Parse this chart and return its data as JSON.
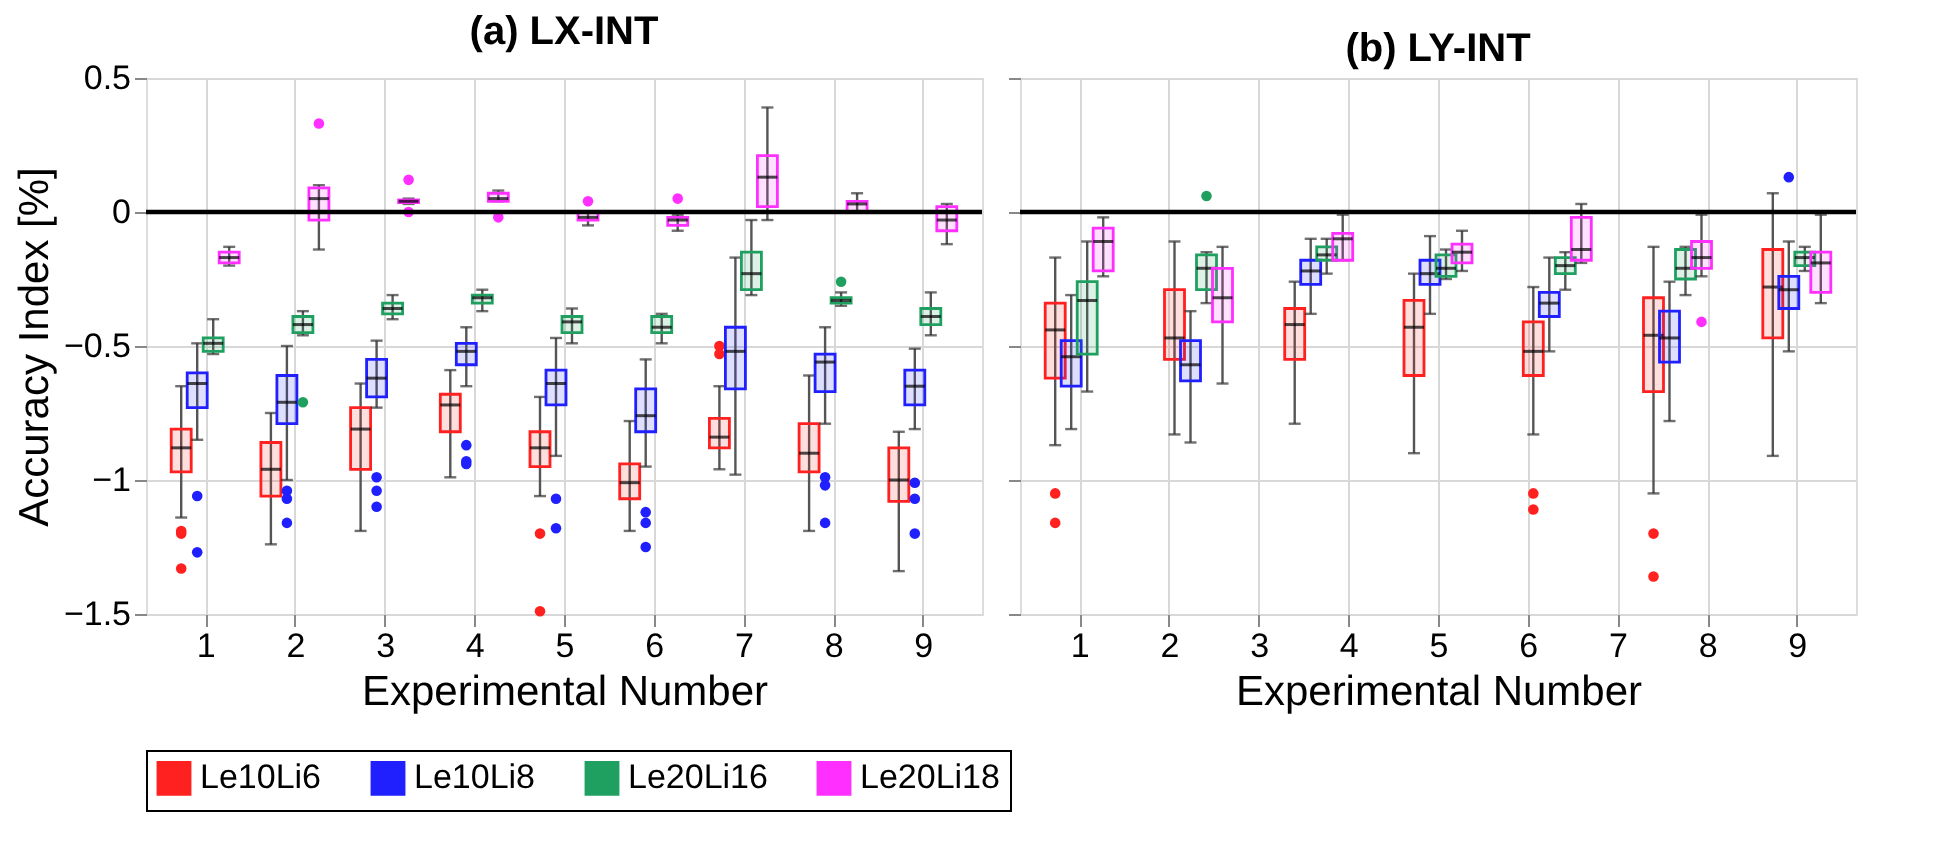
{
  "chart_data": [
    {
      "type": "box",
      "title": "(a) LX-INT",
      "xlabel": "Experimental Number",
      "ylabel": "Accuracy Index [%]",
      "xlim": [
        0.34,
        9.66
      ],
      "xticks": [
        1,
        2,
        3,
        4,
        5,
        6,
        7,
        8,
        9
      ],
      "ylim": [
        -1.5,
        0.5
      ],
      "yticks": [
        -1.5,
        -1,
        -0.5,
        0,
        0.5
      ],
      "grid": true,
      "legend": "bottom",
      "ref_lines": [
        {
          "axis": "y",
          "value": 0,
          "color": "#000000"
        }
      ],
      "series": [
        {
          "name": "Le10Li6",
          "color": "#ff2020",
          "x": [
            1,
            2,
            3,
            4,
            5,
            6,
            7,
            8,
            9
          ],
          "boxes": [
            {
              "low": -1.14,
              "q1": -0.97,
              "median": -0.88,
              "q3": -0.81,
              "high": -0.65,
              "outliers": [
                -1.19,
                -1.2,
                -1.33
              ]
            },
            {
              "low": -1.24,
              "q1": -1.06,
              "median": -0.96,
              "q3": -0.86,
              "high": -0.75
            },
            {
              "low": -1.19,
              "q1": -0.96,
              "median": -0.81,
              "q3": -0.73,
              "high": -0.64
            },
            {
              "low": -0.99,
              "q1": -0.82,
              "median": -0.72,
              "q3": -0.68,
              "high": -0.59
            },
            {
              "low": -1.06,
              "q1": -0.95,
              "median": -0.88,
              "q3": -0.82,
              "high": -0.69,
              "outliers": [
                -1.2,
                -1.49
              ]
            },
            {
              "low": -1.19,
              "q1": -1.07,
              "median": -1.01,
              "q3": -0.94,
              "high": -0.78
            },
            {
              "low": -0.96,
              "q1": -0.88,
              "median": -0.84,
              "q3": -0.77,
              "high": -0.65,
              "outliers": [
                -0.5,
                -0.53
              ]
            },
            {
              "low": -1.19,
              "q1": -0.97,
              "median": -0.9,
              "q3": -0.79,
              "high": -0.61
            },
            {
              "low": -1.34,
              "q1": -1.08,
              "median": -1.0,
              "q3": -0.88,
              "high": -0.82
            }
          ]
        },
        {
          "name": "Le10Li8",
          "color": "#2020ff",
          "x": [
            1,
            2,
            3,
            4,
            5,
            6,
            7,
            8,
            9
          ],
          "boxes": [
            {
              "low": -0.85,
              "q1": -0.73,
              "median": -0.64,
              "q3": -0.6,
              "high": -0.49,
              "outliers": [
                -1.06,
                -1.27
              ]
            },
            {
              "low": -1.0,
              "q1": -0.79,
              "median": -0.71,
              "q3": -0.61,
              "high": -0.5,
              "outliers": [
                -1.04,
                -1.07,
                -1.16
              ]
            },
            {
              "low": -0.73,
              "q1": -0.69,
              "median": -0.62,
              "q3": -0.55,
              "high": -0.48,
              "outliers": [
                -0.99,
                -1.04,
                -1.1
              ]
            },
            {
              "low": -0.65,
              "q1": -0.57,
              "median": -0.52,
              "q3": -0.49,
              "high": -0.43,
              "outliers": [
                -0.87,
                -0.93,
                -0.94
              ]
            },
            {
              "low": -0.91,
              "q1": -0.72,
              "median": -0.64,
              "q3": -0.59,
              "high": -0.47,
              "outliers": [
                -1.07,
                -1.18
              ]
            },
            {
              "low": -0.95,
              "q1": -0.82,
              "median": -0.76,
              "q3": -0.66,
              "high": -0.55,
              "outliers": [
                -1.12,
                -1.16,
                -1.25
              ]
            },
            {
              "low": -0.98,
              "q1": -0.66,
              "median": -0.52,
              "q3": -0.43,
              "high": -0.17
            },
            {
              "low": -0.79,
              "q1": -0.67,
              "median": -0.56,
              "q3": -0.53,
              "high": -0.43,
              "outliers": [
                -0.99,
                -1.02,
                -1.16
              ]
            },
            {
              "low": -0.81,
              "q1": -0.72,
              "median": -0.65,
              "q3": -0.59,
              "high": -0.51,
              "outliers": [
                -1.01,
                -1.07,
                -1.2
              ]
            }
          ]
        },
        {
          "name": "Le20Li16",
          "color": "#20a060",
          "x": [
            1,
            2,
            3,
            4,
            5,
            6,
            7,
            8,
            9
          ],
          "boxes": [
            {
              "low": -0.53,
              "q1": -0.52,
              "median": -0.49,
              "q3": -0.47,
              "high": -0.4
            },
            {
              "low": -0.46,
              "q1": -0.45,
              "median": -0.42,
              "q3": -0.39,
              "high": -0.37,
              "outliers": [
                -0.71
              ]
            },
            {
              "low": -0.4,
              "q1": -0.38,
              "median": -0.36,
              "q3": -0.34,
              "high": -0.31
            },
            {
              "low": -0.37,
              "q1": -0.34,
              "median": -0.32,
              "q3": -0.31,
              "high": -0.29
            },
            {
              "low": -0.49,
              "q1": -0.45,
              "median": -0.41,
              "q3": -0.39,
              "high": -0.36
            },
            {
              "low": -0.49,
              "q1": -0.45,
              "median": -0.43,
              "q3": -0.39,
              "high": -0.38
            },
            {
              "low": -0.31,
              "q1": -0.29,
              "median": -0.23,
              "q3": -0.15,
              "high": -0.03
            },
            {
              "low": -0.35,
              "q1": -0.34,
              "median": -0.33,
              "q3": -0.32,
              "high": -0.3,
              "outliers": [
                -0.26
              ]
            },
            {
              "low": -0.46,
              "q1": -0.42,
              "median": -0.39,
              "q3": -0.36,
              "high": -0.3
            }
          ]
        },
        {
          "name": "Le20Li18",
          "color": "#ff30ff",
          "x": [
            1,
            2,
            3,
            4,
            5,
            6,
            7,
            8,
            9
          ],
          "boxes": [
            {
              "low": -0.2,
              "q1": -0.19,
              "median": -0.17,
              "q3": -0.15,
              "high": -0.13
            },
            {
              "low": -0.14,
              "q1": -0.03,
              "median": 0.05,
              "q3": 0.09,
              "high": 0.1,
              "outliers": [
                0.33
              ]
            },
            {
              "low": 0.03,
              "q1": 0.035,
              "median": 0.04,
              "q3": 0.045,
              "high": 0.05,
              "outliers": [
                0.12,
                0.0
              ]
            },
            {
              "low": 0.04,
              "q1": 0.04,
              "median": 0.05,
              "q3": 0.07,
              "high": 0.08,
              "outliers": [
                -0.02
              ]
            },
            {
              "low": -0.05,
              "q1": -0.03,
              "median": -0.02,
              "q3": 0.0,
              "high": 0.0,
              "outliers": [
                0.04
              ]
            },
            {
              "low": -0.07,
              "q1": -0.05,
              "median": -0.03,
              "q3": -0.02,
              "high": -0.01,
              "outliers": [
                0.05
              ]
            },
            {
              "low": -0.03,
              "q1": 0.02,
              "median": 0.13,
              "q3": 0.21,
              "high": 0.39
            },
            {
              "low": 0.0,
              "q1": 0.0,
              "median": 0.03,
              "q3": 0.04,
              "high": 0.07
            },
            {
              "low": -0.12,
              "q1": -0.07,
              "median": -0.03,
              "q3": 0.02,
              "high": 0.03
            }
          ]
        }
      ]
    },
    {
      "type": "box",
      "title": "(b) LY-INT",
      "xlabel": "Experimental Number",
      "xlim": [
        0.34,
        9.66
      ],
      "xticks": [
        1,
        2,
        3,
        4,
        5,
        6,
        7,
        8,
        9
      ],
      "ylim": [
        -1.5,
        0.5
      ],
      "yticks": [
        -1.5,
        -1,
        -0.5,
        0,
        0.5
      ],
      "tick_labels": "x",
      "grid": true,
      "legend": "bottom",
      "ref_lines": [
        {
          "axis": "y",
          "value": 0,
          "color": "#000000"
        }
      ],
      "series": [
        {
          "name": "Le10Li6",
          "color": "#ff2020",
          "x": [
            1,
            2.33,
            3.67,
            5,
            6.33,
            7.67,
            9
          ],
          "boxes": [
            {
              "low": -0.87,
              "q1": -0.62,
              "median": -0.44,
              "q3": -0.34,
              "high": -0.17,
              "outliers": [
                -1.05,
                -1.16
              ]
            },
            {
              "low": -0.83,
              "q1": -0.55,
              "median": -0.47,
              "q3": -0.29,
              "high": -0.11
            },
            {
              "low": -0.79,
              "q1": -0.55,
              "median": -0.42,
              "q3": -0.36,
              "high": -0.26
            },
            {
              "low": -0.9,
              "q1": -0.61,
              "median": -0.43,
              "q3": -0.33,
              "high": -0.23
            },
            {
              "low": -0.83,
              "q1": -0.61,
              "median": -0.52,
              "q3": -0.41,
              "high": -0.28,
              "outliers": [
                -1.05,
                -1.11
              ]
            },
            {
              "low": -1.05,
              "q1": -0.67,
              "median": -0.46,
              "q3": -0.32,
              "high": -0.13,
              "outliers": [
                -1.2,
                -1.36
              ]
            },
            {
              "low": -0.91,
              "q1": -0.47,
              "median": -0.28,
              "q3": -0.14,
              "high": 0.07
            }
          ]
        },
        {
          "name": "Le10Li8",
          "color": "#2020ff",
          "x": [
            1,
            2.33,
            3.67,
            5,
            6.33,
            7.67,
            9
          ],
          "boxes": [
            {
              "low": -0.81,
              "q1": -0.65,
              "median": -0.54,
              "q3": -0.48,
              "high": -0.31
            },
            {
              "low": -0.86,
              "q1": -0.63,
              "median": -0.57,
              "q3": -0.48,
              "high": -0.37
            },
            {
              "low": -0.38,
              "q1": -0.27,
              "median": -0.22,
              "q3": -0.18,
              "high": -0.1
            },
            {
              "low": -0.38,
              "q1": -0.27,
              "median": -0.23,
              "q3": -0.18,
              "high": -0.09
            },
            {
              "low": -0.52,
              "q1": -0.39,
              "median": -0.34,
              "q3": -0.3,
              "high": -0.17
            },
            {
              "low": -0.78,
              "q1": -0.56,
              "median": -0.47,
              "q3": -0.37,
              "high": -0.26
            },
            {
              "low": -0.52,
              "q1": -0.36,
              "median": -0.29,
              "q3": -0.24,
              "high": -0.11,
              "outliers": [
                0.13
              ]
            }
          ]
        },
        {
          "name": "Le20Li16",
          "color": "#20a060",
          "x": [
            1,
            2.33,
            3.67,
            5,
            6.33,
            7.67,
            9
          ],
          "boxes": [
            {
              "low": -0.67,
              "q1": -0.53,
              "median": -0.33,
              "q3": -0.26,
              "high": -0.11
            },
            {
              "low": -0.34,
              "q1": -0.29,
              "median": -0.21,
              "q3": -0.16,
              "high": -0.15,
              "outliers": [
                0.06
              ]
            },
            {
              "low": -0.23,
              "q1": -0.18,
              "median": -0.16,
              "q3": -0.13,
              "high": -0.1
            },
            {
              "low": -0.25,
              "q1": -0.24,
              "median": -0.21,
              "q3": -0.16,
              "high": -0.14
            },
            {
              "low": -0.29,
              "q1": -0.23,
              "median": -0.2,
              "q3": -0.17,
              "high": -0.15
            },
            {
              "low": -0.31,
              "q1": -0.25,
              "median": -0.21,
              "q3": -0.14,
              "high": -0.13
            },
            {
              "low": -0.22,
              "q1": -0.2,
              "median": -0.17,
              "q3": -0.15,
              "high": -0.13
            }
          ]
        },
        {
          "name": "Le20Li18",
          "color": "#ff30ff",
          "x": [
            1,
            2.33,
            3.67,
            5,
            6.33,
            7.67,
            9
          ],
          "boxes": [
            {
              "low": -0.24,
              "q1": -0.22,
              "median": -0.11,
              "q3": -0.06,
              "high": -0.02
            },
            {
              "low": -0.64,
              "q1": -0.41,
              "median": -0.32,
              "q3": -0.21,
              "high": -0.13
            },
            {
              "low": -0.18,
              "q1": -0.18,
              "median": -0.1,
              "q3": -0.08,
              "high": -0.01
            },
            {
              "low": -0.22,
              "q1": -0.19,
              "median": -0.15,
              "q3": -0.12,
              "high": -0.07
            },
            {
              "low": -0.19,
              "q1": -0.18,
              "median": -0.14,
              "q3": -0.02,
              "high": 0.03
            },
            {
              "low": -0.24,
              "q1": -0.21,
              "median": -0.17,
              "q3": -0.11,
              "high": -0.01,
              "outliers": [
                -0.41
              ]
            },
            {
              "low": -0.34,
              "q1": -0.3,
              "median": -0.19,
              "q3": -0.15,
              "high": -0.01
            }
          ]
        }
      ]
    }
  ]
}
